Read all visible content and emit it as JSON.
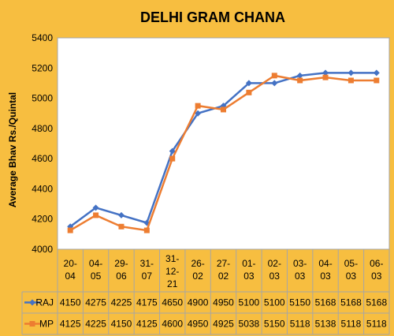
{
  "chart_data": {
    "type": "line",
    "title": "DELHI GRAM CHANA",
    "ylabel": "Average Bhav Rs./Quintal",
    "xlabel": "",
    "ylim": [
      4000,
      5400
    ],
    "yticks": [
      4000,
      4200,
      4400,
      4600,
      4800,
      5000,
      5200,
      5400
    ],
    "grid": true,
    "legend": "data-table",
    "categories": [
      [
        "20-",
        "04"
      ],
      [
        "04-",
        "05"
      ],
      [
        "29-",
        "06"
      ],
      [
        "31-",
        "07"
      ],
      [
        "31-",
        "12-",
        "21"
      ],
      [
        "26-",
        "02"
      ],
      [
        "27-",
        "02"
      ],
      [
        "01-",
        "03"
      ],
      [
        "02-",
        "03"
      ],
      [
        "03-",
        "03"
      ],
      [
        "04-",
        "03"
      ],
      [
        "05-",
        "03"
      ],
      [
        "06-",
        "03"
      ]
    ],
    "series": [
      {
        "name": "RAJ",
        "color": "#4472C4",
        "marker": "diamond",
        "values": [
          4150,
          4275,
          4225,
          4175,
          4650,
          4900,
          4950,
          5100,
          5100,
          5150,
          5168,
          5168,
          5168
        ]
      },
      {
        "name": "MP",
        "color": "#ED7D31",
        "marker": "square",
        "values": [
          4125,
          4225,
          4150,
          4125,
          4600,
          4950,
          4925,
          5038,
          5150,
          5118,
          5138,
          5118,
          5118
        ]
      }
    ]
  }
}
